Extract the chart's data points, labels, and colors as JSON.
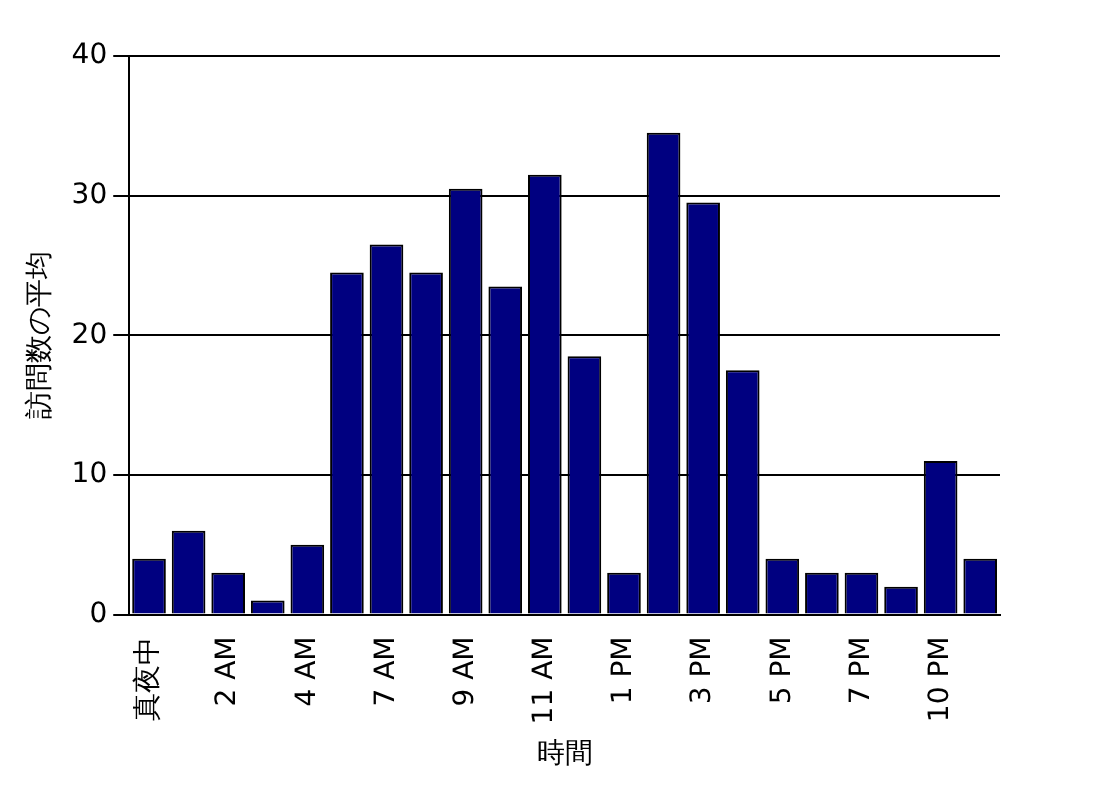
{
  "chart_data": {
    "type": "bar",
    "xlabel": "時間",
    "ylabel": "訪問数の平均",
    "categories": [
      "真夜中",
      null,
      "2 AM",
      null,
      "4 AM",
      null,
      "7 AM",
      null,
      "9 AM",
      null,
      "11 AM",
      null,
      "1 PM",
      null,
      "3 PM",
      null,
      "5 PM",
      null,
      "7 PM",
      null,
      "10 PM",
      null
    ],
    "values": [
      4,
      6,
      3,
      1,
      5,
      24.5,
      26.5,
      24.5,
      30.5,
      23.5,
      31.5,
      18.5,
      3,
      34.5,
      29.5,
      17.5,
      4,
      3,
      3,
      2,
      11,
      4
    ],
    "color": "#000080",
    "ylim": [
      0,
      40
    ],
    "yticks": [
      0,
      10,
      20,
      30,
      40
    ],
    "grid": "y",
    "legend": false
  }
}
